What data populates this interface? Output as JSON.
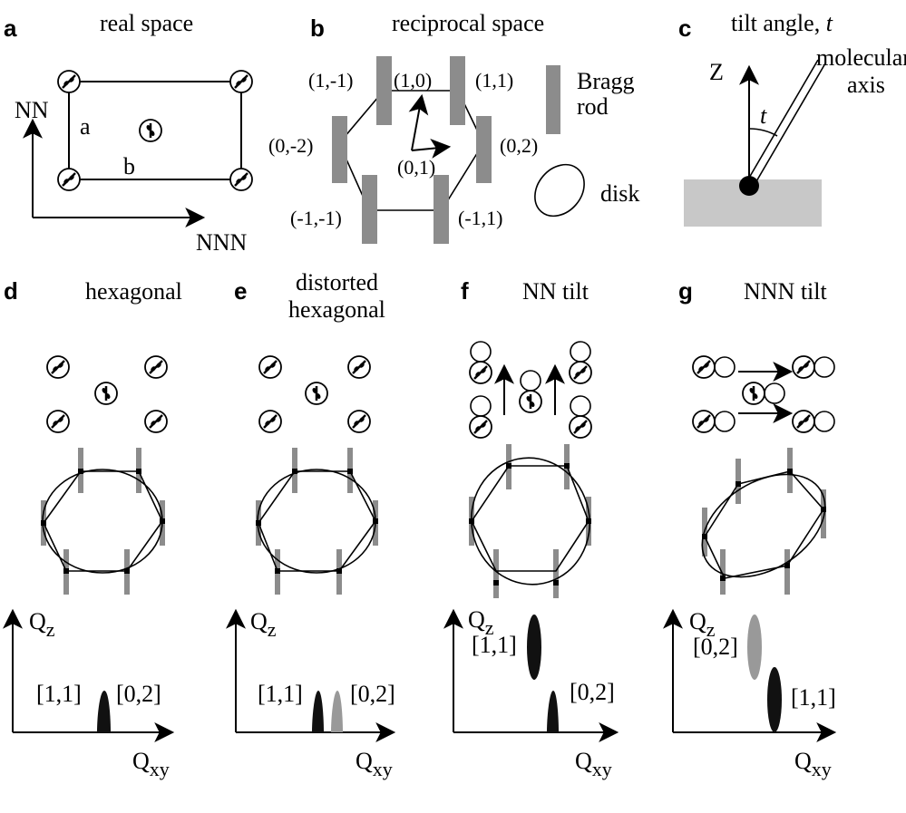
{
  "panels": {
    "a": {
      "letter": "a",
      "title": "real space",
      "axis_vertical": "NN",
      "axis_horizontal": "NNN",
      "label_a": "a",
      "label_b": "b"
    },
    "b": {
      "letter": "b",
      "title": "reciprocal space",
      "indices": [
        "(1,-1)",
        "(1,0)",
        "(1,1)",
        "(0,-2)",
        "(0,2)",
        "(0,1)",
        "(-1,-1)",
        "(-1,1)"
      ],
      "legend_rod_line1": "Bragg",
      "legend_rod_line2": "rod",
      "legend_disk": "disk"
    },
    "c": {
      "letter": "c",
      "title": "tilt angle, ",
      "title_var": "t",
      "axis_z": "Z",
      "molecular_line1": "molecular",
      "molecular_line2": "axis",
      "angle_label": "t"
    },
    "d": {
      "letter": "d",
      "title": "hexagonal",
      "peak_left": "[1,1]",
      "peak_right": "[0,2]",
      "qz": "Q",
      "qz_sub": "z",
      "qxy": "Q",
      "qxy_sub": "xy"
    },
    "e": {
      "letter": "e",
      "title_line1": "distorted",
      "title_line2": "hexagonal",
      "peak_left": "[1,1]",
      "peak_right": "[0,2]",
      "qz": "Q",
      "qz_sub": "z",
      "qxy": "Q",
      "qxy_sub": "xy"
    },
    "f": {
      "letter": "f",
      "title": "NN tilt",
      "peak_upper": "[1,1]",
      "peak_lower": "[0,2]",
      "qz": "Q",
      "qz_sub": "z",
      "qxy": "Q",
      "qxy_sub": "xy"
    },
    "g": {
      "letter": "g",
      "title": "NNN tilt",
      "peak_upper": "[0,2]",
      "peak_lower": "[1,1]",
      "qz": "Q",
      "qz_sub": "z",
      "qxy": "Q",
      "qxy_sub": "xy"
    }
  },
  "colors": {
    "rod": "#8c8c8c",
    "substrate": "#c8c8c8",
    "peak_dark": "#111111",
    "peak_gray": "#999999"
  }
}
